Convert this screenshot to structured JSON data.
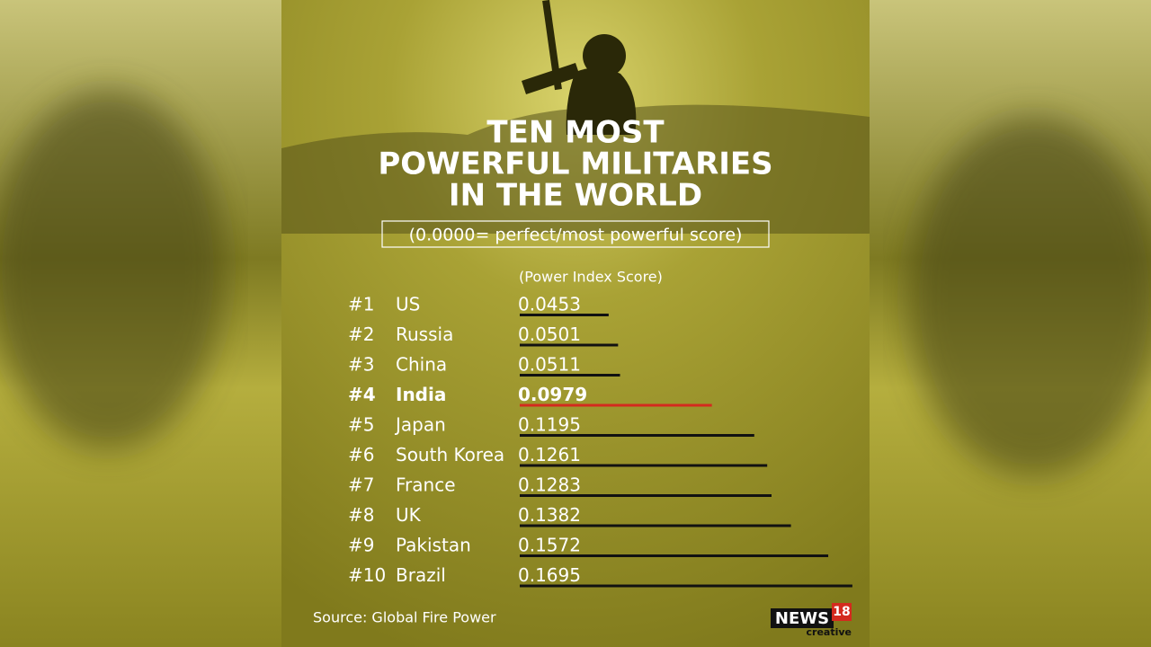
{
  "chart_data": {
    "type": "bar",
    "title": [
      "TEN MOST",
      "POWERFUL MILITARIES",
      "IN THE WORLD"
    ],
    "subtitle": "(0.0000= perfect/most powerful score)",
    "value_label": "(Power Index Score)",
    "ranks": [
      "#1",
      "#2",
      "#3",
      "#4",
      "#5",
      "#6",
      "#7",
      "#8",
      "#9",
      "#10"
    ],
    "categories": [
      "US",
      "Russia",
      "China",
      "India",
      "Japan",
      "South Korea",
      "France",
      "UK",
      "Pakistan",
      "Brazil"
    ],
    "values": [
      0.0453,
      0.0501,
      0.0511,
      0.0979,
      0.1195,
      0.1261,
      0.1283,
      0.1382,
      0.1572,
      0.1695
    ],
    "color": "#111111",
    "colors": [
      "#111111",
      "#111111",
      "#111111",
      "#d42a1e",
      "#111111",
      "#111111",
      "#111111",
      "#111111",
      "#111111",
      "#111111"
    ],
    "xlim": [
      0,
      0.17
    ],
    "source": "Source: Global Fire Power",
    "logo": {
      "name": "NEWS",
      "number": "18",
      "tag": "creative"
    }
  }
}
